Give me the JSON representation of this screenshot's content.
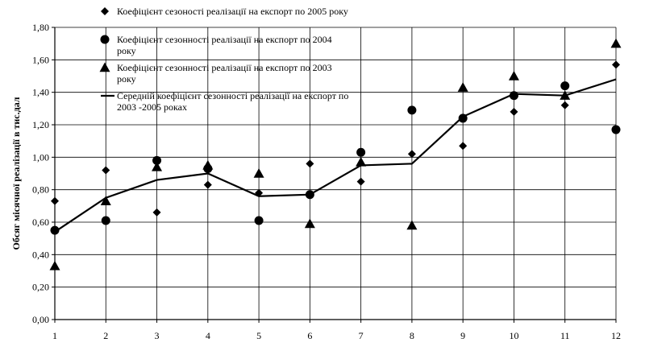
{
  "chart_data": {
    "type": "scatter",
    "x": [
      1,
      2,
      3,
      4,
      5,
      6,
      7,
      8,
      9,
      10,
      11,
      12
    ],
    "series": [
      {
        "name": "Коефіцієнт сезоності реалізації на експорт по 2005 року",
        "marker": "diamond",
        "values": [
          0.73,
          0.92,
          0.66,
          0.83,
          0.78,
          0.96,
          0.85,
          1.02,
          1.07,
          1.28,
          1.32,
          1.57
        ]
      },
      {
        "name": "Коефіцієнт сезонності реалізації на експорт по 2004 року",
        "marker": "circle",
        "values": [
          0.55,
          0.61,
          0.98,
          0.93,
          0.61,
          0.77,
          1.03,
          1.29,
          1.24,
          1.38,
          1.44,
          1.17
        ]
      },
      {
        "name": "Коефіцієнт сезонності реалізації на експорт по 2003 року",
        "marker": "triangle",
        "values": [
          0.33,
          0.73,
          0.94,
          0.95,
          0.9,
          0.59,
          0.97,
          0.58,
          1.43,
          1.5,
          1.38,
          1.7
        ]
      },
      {
        "name": "Середній коефіцієнт сезонності реалізації на експорт по 2003 -2005 роках",
        "marker": "line",
        "values": [
          0.54,
          0.75,
          0.86,
          0.9,
          0.76,
          0.77,
          0.95,
          0.96,
          1.25,
          1.39,
          1.38,
          1.48
        ]
      }
    ],
    "legend_lines": [
      [
        "Коефіцієнт сезоності реалізації на експорт по 2005 року"
      ],
      [
        "Коефіцієнт сезонності реалізації на експорт по 2004",
        "року"
      ],
      [
        "Коефіцієнт сезонності реалізації на експорт по 2003",
        "року"
      ],
      [
        "Середній коефіцієнт сезонності реалізації на експорт по",
        "2003 -2005 роках"
      ]
    ],
    "xlabel": "",
    "ylabel": "Обсяг місячної реалізації в тис.дал",
    "xlim": [
      1,
      12
    ],
    "ylim": [
      0,
      1.8
    ],
    "yticks": [
      "0,00",
      "0,20",
      "0,40",
      "0,60",
      "0,80",
      "1,00",
      "1,20",
      "1,40",
      "1,60",
      "1,80"
    ],
    "xticks": [
      "1",
      "2",
      "3",
      "4",
      "5",
      "6",
      "7",
      "8",
      "9",
      "10",
      "11",
      "12"
    ],
    "grid": true,
    "legend_position": "top-left"
  }
}
